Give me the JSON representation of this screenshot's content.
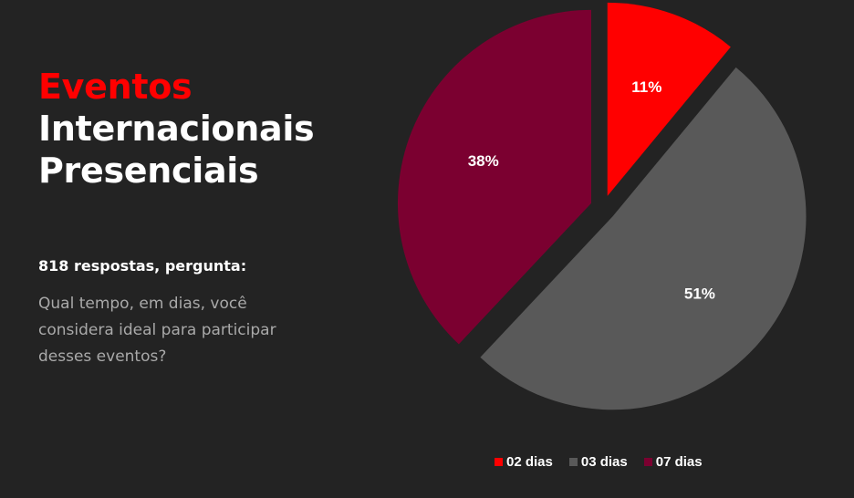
{
  "header": {
    "title_accent": "Eventos",
    "title_line2": "Internacionais",
    "title_line3": "Presenciais"
  },
  "info": {
    "respostas": "818 respostas, pergunta:",
    "question": "Qual tempo, em dias, você considera ideal para participar desses eventos?"
  },
  "chart_data": {
    "type": "pie",
    "legend_position": "bottom",
    "slices": [
      {
        "label": "02 dias",
        "value": 11,
        "display": "11%",
        "color": "#ff0000"
      },
      {
        "label": "03 dias",
        "value": 51,
        "display": "51%",
        "color": "#595959"
      },
      {
        "label": "07 dias",
        "value": 38,
        "display": "38%",
        "color": "#7b0030"
      }
    ]
  }
}
